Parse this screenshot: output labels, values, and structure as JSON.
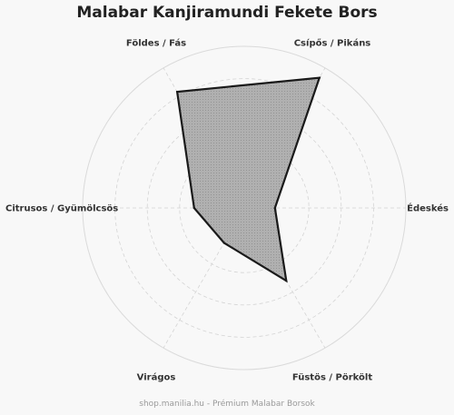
{
  "title": "Malabar Kanjiramundi Fekete Bors",
  "footer": "shop.manilia.hu - Prémium Malabar Borsok",
  "chart_data": {
    "type": "radar",
    "title": "Malabar Kanjiramundi Fekete Bors",
    "axes": [
      "Csípős / Pikáns",
      "Édeskés",
      "Füstös / Pörkölt",
      "Virágos",
      "Citrusos / Gyümölcsös",
      "Földes / Fás"
    ],
    "series": [
      {
        "values": [
          9.3,
          1.9,
          5.2,
          2.5,
          3.1,
          8.3
        ]
      }
    ],
    "rlim": [
      0,
      10
    ],
    "grid": true,
    "grid_rings": [
      2,
      4,
      6,
      8,
      10
    ],
    "legend": "none",
    "colors": {
      "fill": "#b0b0b0",
      "stroke": "#1a1a1a",
      "grid": "#d4d4d4",
      "outer_ring": "#dadada"
    }
  }
}
